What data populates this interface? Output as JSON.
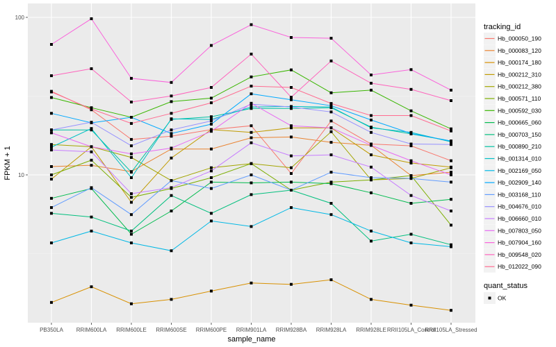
{
  "chart_data": {
    "type": "line",
    "title": "",
    "xlabel": "sample_name",
    "ylabel": "FPKM + 1",
    "yscale": "log10",
    "ylim": [
      1.1,
      120
    ],
    "yticks": [
      {
        "value": 10,
        "label": "10"
      },
      {
        "value": 100,
        "label": "100"
      }
    ],
    "grid": true,
    "categories": [
      "PB350LA",
      "RRIM600LA",
      "RRIM600LE",
      "RRIM600SE",
      "RRIM600PE",
      "RRIM901LA",
      "RRIM928BA",
      "RRIM928LA",
      "RRIM928LE",
      "RRII105LA_Control",
      "RRII105LA_Stressed"
    ],
    "legend": {
      "position": "right",
      "color_title": "tracking_id",
      "shape_title": "quant_status",
      "shape_entries": [
        "OK"
      ]
    },
    "series": [
      {
        "name": "Hb_000050_190",
        "color": "#F8766D",
        "values": [
          33.9,
          25.9,
          16.8,
          17.6,
          19.4,
          20.5,
          10.2,
          22.0,
          15.7,
          15.3,
          12.3
        ]
      },
      {
        "name": "Hb_000083_120",
        "color": "#EA8331",
        "values": [
          11.3,
          11.5,
          10.5,
          14.6,
          14.6,
          17.2,
          17.4,
          16.1,
          15.4,
          9.9,
          10.4
        ]
      },
      {
        "name": "Hb_000174_180",
        "color": "#D89000",
        "values": [
          1.55,
          1.95,
          1.52,
          1.62,
          1.83,
          2.06,
          2.02,
          2.16,
          1.62,
          1.49,
          1.38
        ]
      },
      {
        "name": "Hb_000212_310",
        "color": "#C09B00",
        "values": [
          9.4,
          15.1,
          6.7,
          12.8,
          19.4,
          18.6,
          19.9,
          19.9,
          13.4,
          11.9,
          11.2
        ]
      },
      {
        "name": "Hb_000212_380",
        "color": "#A3A500",
        "values": [
          15.6,
          15.1,
          12.9,
          9.2,
          11.1,
          11.8,
          11.1,
          18.8,
          9.3,
          9.5,
          11.1
        ]
      },
      {
        "name": "Hb_000571_110",
        "color": "#7CAE00",
        "values": [
          10.0,
          12.4,
          7.2,
          8.2,
          9.6,
          11.8,
          8.0,
          9.0,
          9.3,
          9.9,
          4.8
        ]
      },
      {
        "name": "Hb_000592_030",
        "color": "#39B600",
        "values": [
          31.0,
          26.7,
          23.2,
          29.2,
          30.7,
          41.9,
          46.4,
          33.2,
          34.5,
          25.5,
          19.6
        ]
      },
      {
        "name": "Hb_000665_060",
        "color": "#00BB4E",
        "values": [
          7.1,
          8.2,
          4.2,
          5.9,
          9.0,
          8.9,
          9.0,
          8.8,
          7.7,
          6.6,
          7.0
        ]
      },
      {
        "name": "Hb_000703_150",
        "color": "#00BF7D",
        "values": [
          5.7,
          5.4,
          4.4,
          7.4,
          5.7,
          7.5,
          8.0,
          6.6,
          3.8,
          4.2,
          3.6
        ]
      },
      {
        "name": "Hb_000890_210",
        "color": "#00C1A3",
        "values": [
          19.3,
          19.3,
          10.4,
          22.5,
          23.4,
          26.4,
          26.4,
          26.7,
          20.1,
          18.2,
          16.4
        ]
      },
      {
        "name": "Hb_001314_010",
        "color": "#00BFC4",
        "values": [
          15.0,
          19.7,
          9.6,
          22.7,
          22.5,
          27.0,
          27.2,
          27.0,
          19.9,
          18.6,
          16.2
        ]
      },
      {
        "name": "Hb_002169_050",
        "color": "#00B8E5",
        "values": [
          3.7,
          4.4,
          3.7,
          3.3,
          5.1,
          4.7,
          6.2,
          5.6,
          4.4,
          3.7,
          3.5
        ]
      },
      {
        "name": "Hb_002909_140",
        "color": "#00A9FF",
        "values": [
          24.6,
          21.4,
          23.2,
          18.3,
          21.0,
          32.7,
          30.0,
          27.5,
          22.3,
          18.3,
          16.4
        ]
      },
      {
        "name": "Hb_003168_110",
        "color": "#619CFF",
        "values": [
          6.2,
          8.3,
          5.6,
          9.2,
          8.2,
          10.0,
          8.0,
          10.4,
          9.6,
          9.5,
          9.0
        ]
      },
      {
        "name": "Hb_004676_010",
        "color": "#9590FF",
        "values": [
          19.3,
          21.6,
          15.3,
          19.3,
          22.0,
          28.1,
          27.0,
          25.1,
          18.6,
          15.7,
          15.6
        ]
      },
      {
        "name": "Hb_006660_010",
        "color": "#C77CFF",
        "values": [
          14.4,
          14.0,
          7.6,
          8.3,
          10.6,
          16.0,
          13.2,
          13.4,
          11.2,
          7.4,
          5.9
        ]
      },
      {
        "name": "Hb_007803_050",
        "color": "#E76BF3",
        "values": [
          18.5,
          15.1,
          13.6,
          14.8,
          18.9,
          28.5,
          20.5,
          19.9,
          15.4,
          12.3,
          10.0
        ]
      },
      {
        "name": "Hb_007904_160",
        "color": "#FA62DB",
        "values": [
          67.3,
          98.0,
          41.0,
          38.6,
          66.3,
          89.9,
          74.5,
          73.7,
          43.1,
          46.6,
          34.5
        ]
      },
      {
        "name": "Hb_009548_020",
        "color": "#FF62BC",
        "values": [
          42.6,
          47.2,
          29.0,
          31.7,
          35.9,
          58.5,
          31.1,
          52.9,
          38.2,
          34.9,
          29.6
        ]
      },
      {
        "name": "Hb_012022_090",
        "color": "#FF6C91",
        "values": [
          33.6,
          26.2,
          21.2,
          24.6,
          28.7,
          36.6,
          35.9,
          28.4,
          23.8,
          23.8,
          19.0
        ]
      }
    ]
  }
}
